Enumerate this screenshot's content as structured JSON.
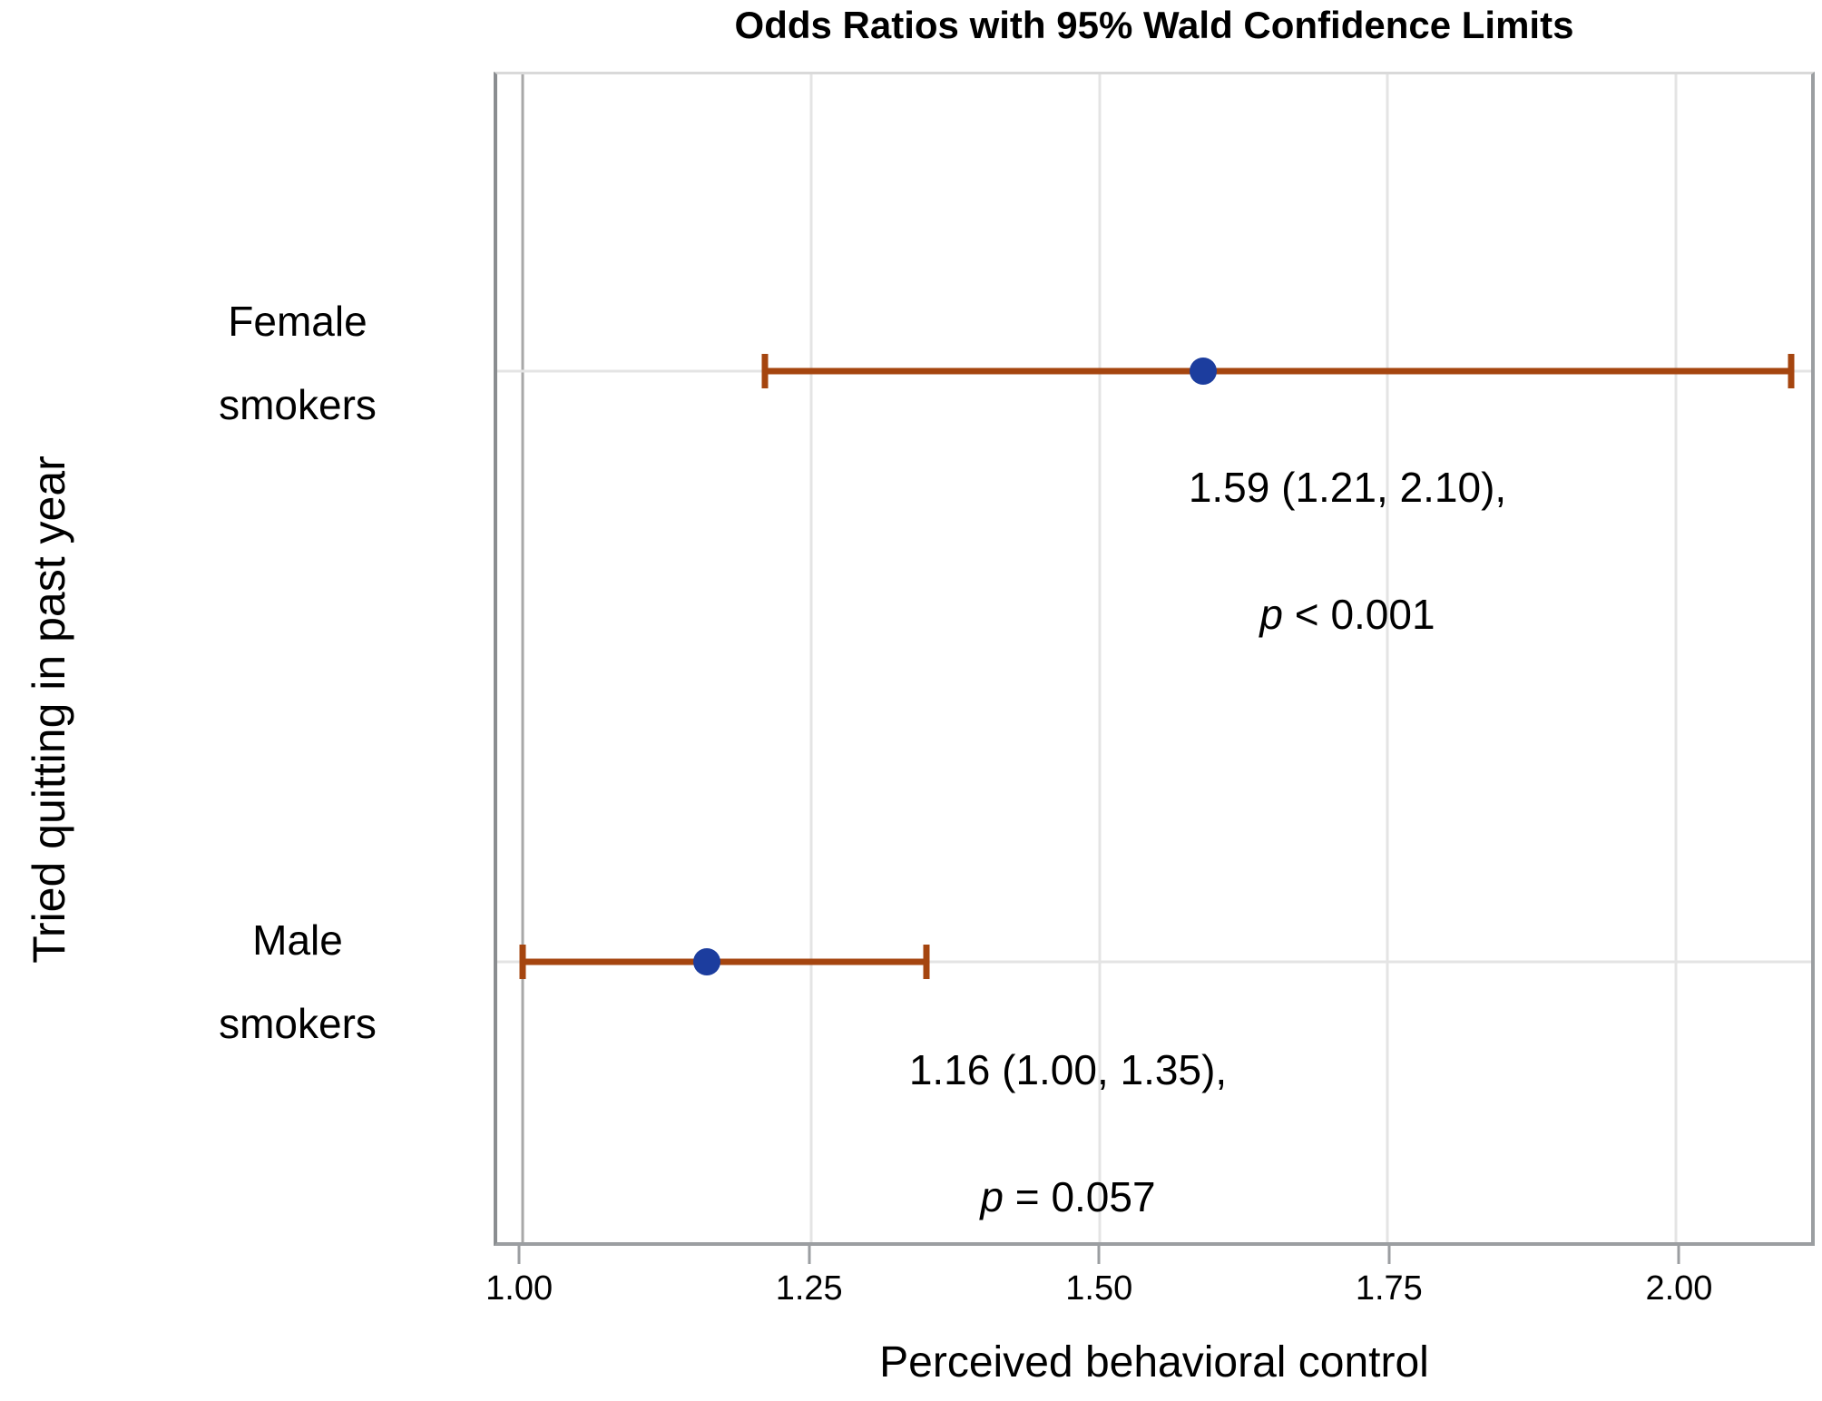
{
  "title": "Odds Ratios with 95% Wald Confidence Limits",
  "x_axis": {
    "label": "Perceived behavioral control",
    "min": 0.978,
    "max": 2.117,
    "reference_line": 1.0,
    "tick_values": [
      1.0,
      1.25,
      1.5,
      1.75,
      2.0
    ],
    "tick_labels": [
      "1.00",
      "1.25",
      "1.50",
      "1.75",
      "2.00"
    ]
  },
  "y_axis": {
    "label": "Tried quitting in past year"
  },
  "colors": {
    "error_bar": "#a5450f",
    "marker": "#1c3d9e",
    "gridline": "#e4e4e4",
    "reference_line": "#a8a8a8",
    "axis_border": "#9b9ea1",
    "text": "#000000"
  },
  "chart_data": {
    "type": "scatter",
    "subtype": "forest-plot-odds-ratios-with-error-bars",
    "title": "Odds Ratios with 95% Wald Confidence Limits",
    "xlabel": "Perceived behavioral control",
    "ylabel": "Tried quitting in past year",
    "xlim": [
      0.978,
      2.117
    ],
    "x_ticks": [
      1.0,
      1.25,
      1.5,
      1.75,
      2.0
    ],
    "grid": true,
    "legend": false,
    "points": [
      {
        "category": "Female smokers",
        "category_line1": "Female",
        "category_line2": "smokers",
        "odds_ratio": 1.59,
        "ci_lower": 1.21,
        "ci_upper": 2.1,
        "annotation": "1.59 (1.21, 2.10),",
        "p_value_text": "p < 0.001",
        "p_italic": "p",
        "p_rest": " < 0.001",
        "y_frac": 0.254
      },
      {
        "category": "Male smokers",
        "category_line1": "Male",
        "category_line2": "smokers",
        "odds_ratio": 1.16,
        "ci_lower": 1.0,
        "ci_upper": 1.35,
        "annotation": "1.16 (1.00, 1.35),",
        "p_value_text": "p = 0.057",
        "p_italic": "p",
        "p_rest": " = 0.057",
        "y_frac": 0.76
      }
    ]
  }
}
